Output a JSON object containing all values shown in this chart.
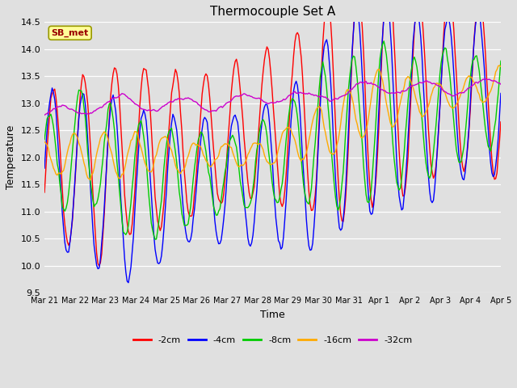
{
  "title": "Thermocouple Set A",
  "xlabel": "Time",
  "ylabel": "Temperature",
  "ylim": [
    9.5,
    14.5
  ],
  "fig_width": 6.4,
  "fig_height": 4.8,
  "dpi": 100,
  "bg_color": "#e0e0e0",
  "series_colors": {
    "-2cm": "#ff0000",
    "-4cm": "#0000ff",
    "-8cm": "#00cc00",
    "-16cm": "#ffaa00",
    "-32cm": "#cc00cc"
  },
  "annotation_label": "SB_met",
  "annotation_bg": "#ffff99",
  "annotation_text_color": "#990000",
  "xtick_labels": [
    "Mar 21",
    "Mar 22",
    "Mar 23",
    "Mar 24",
    "Mar 25",
    "Mar 26",
    "Mar 27",
    "Mar 28",
    "Mar 29",
    "Mar 30",
    "Mar 31",
    "Apr 1",
    "Apr 2",
    "Apr 3",
    "Apr 4",
    "Apr 5"
  ]
}
